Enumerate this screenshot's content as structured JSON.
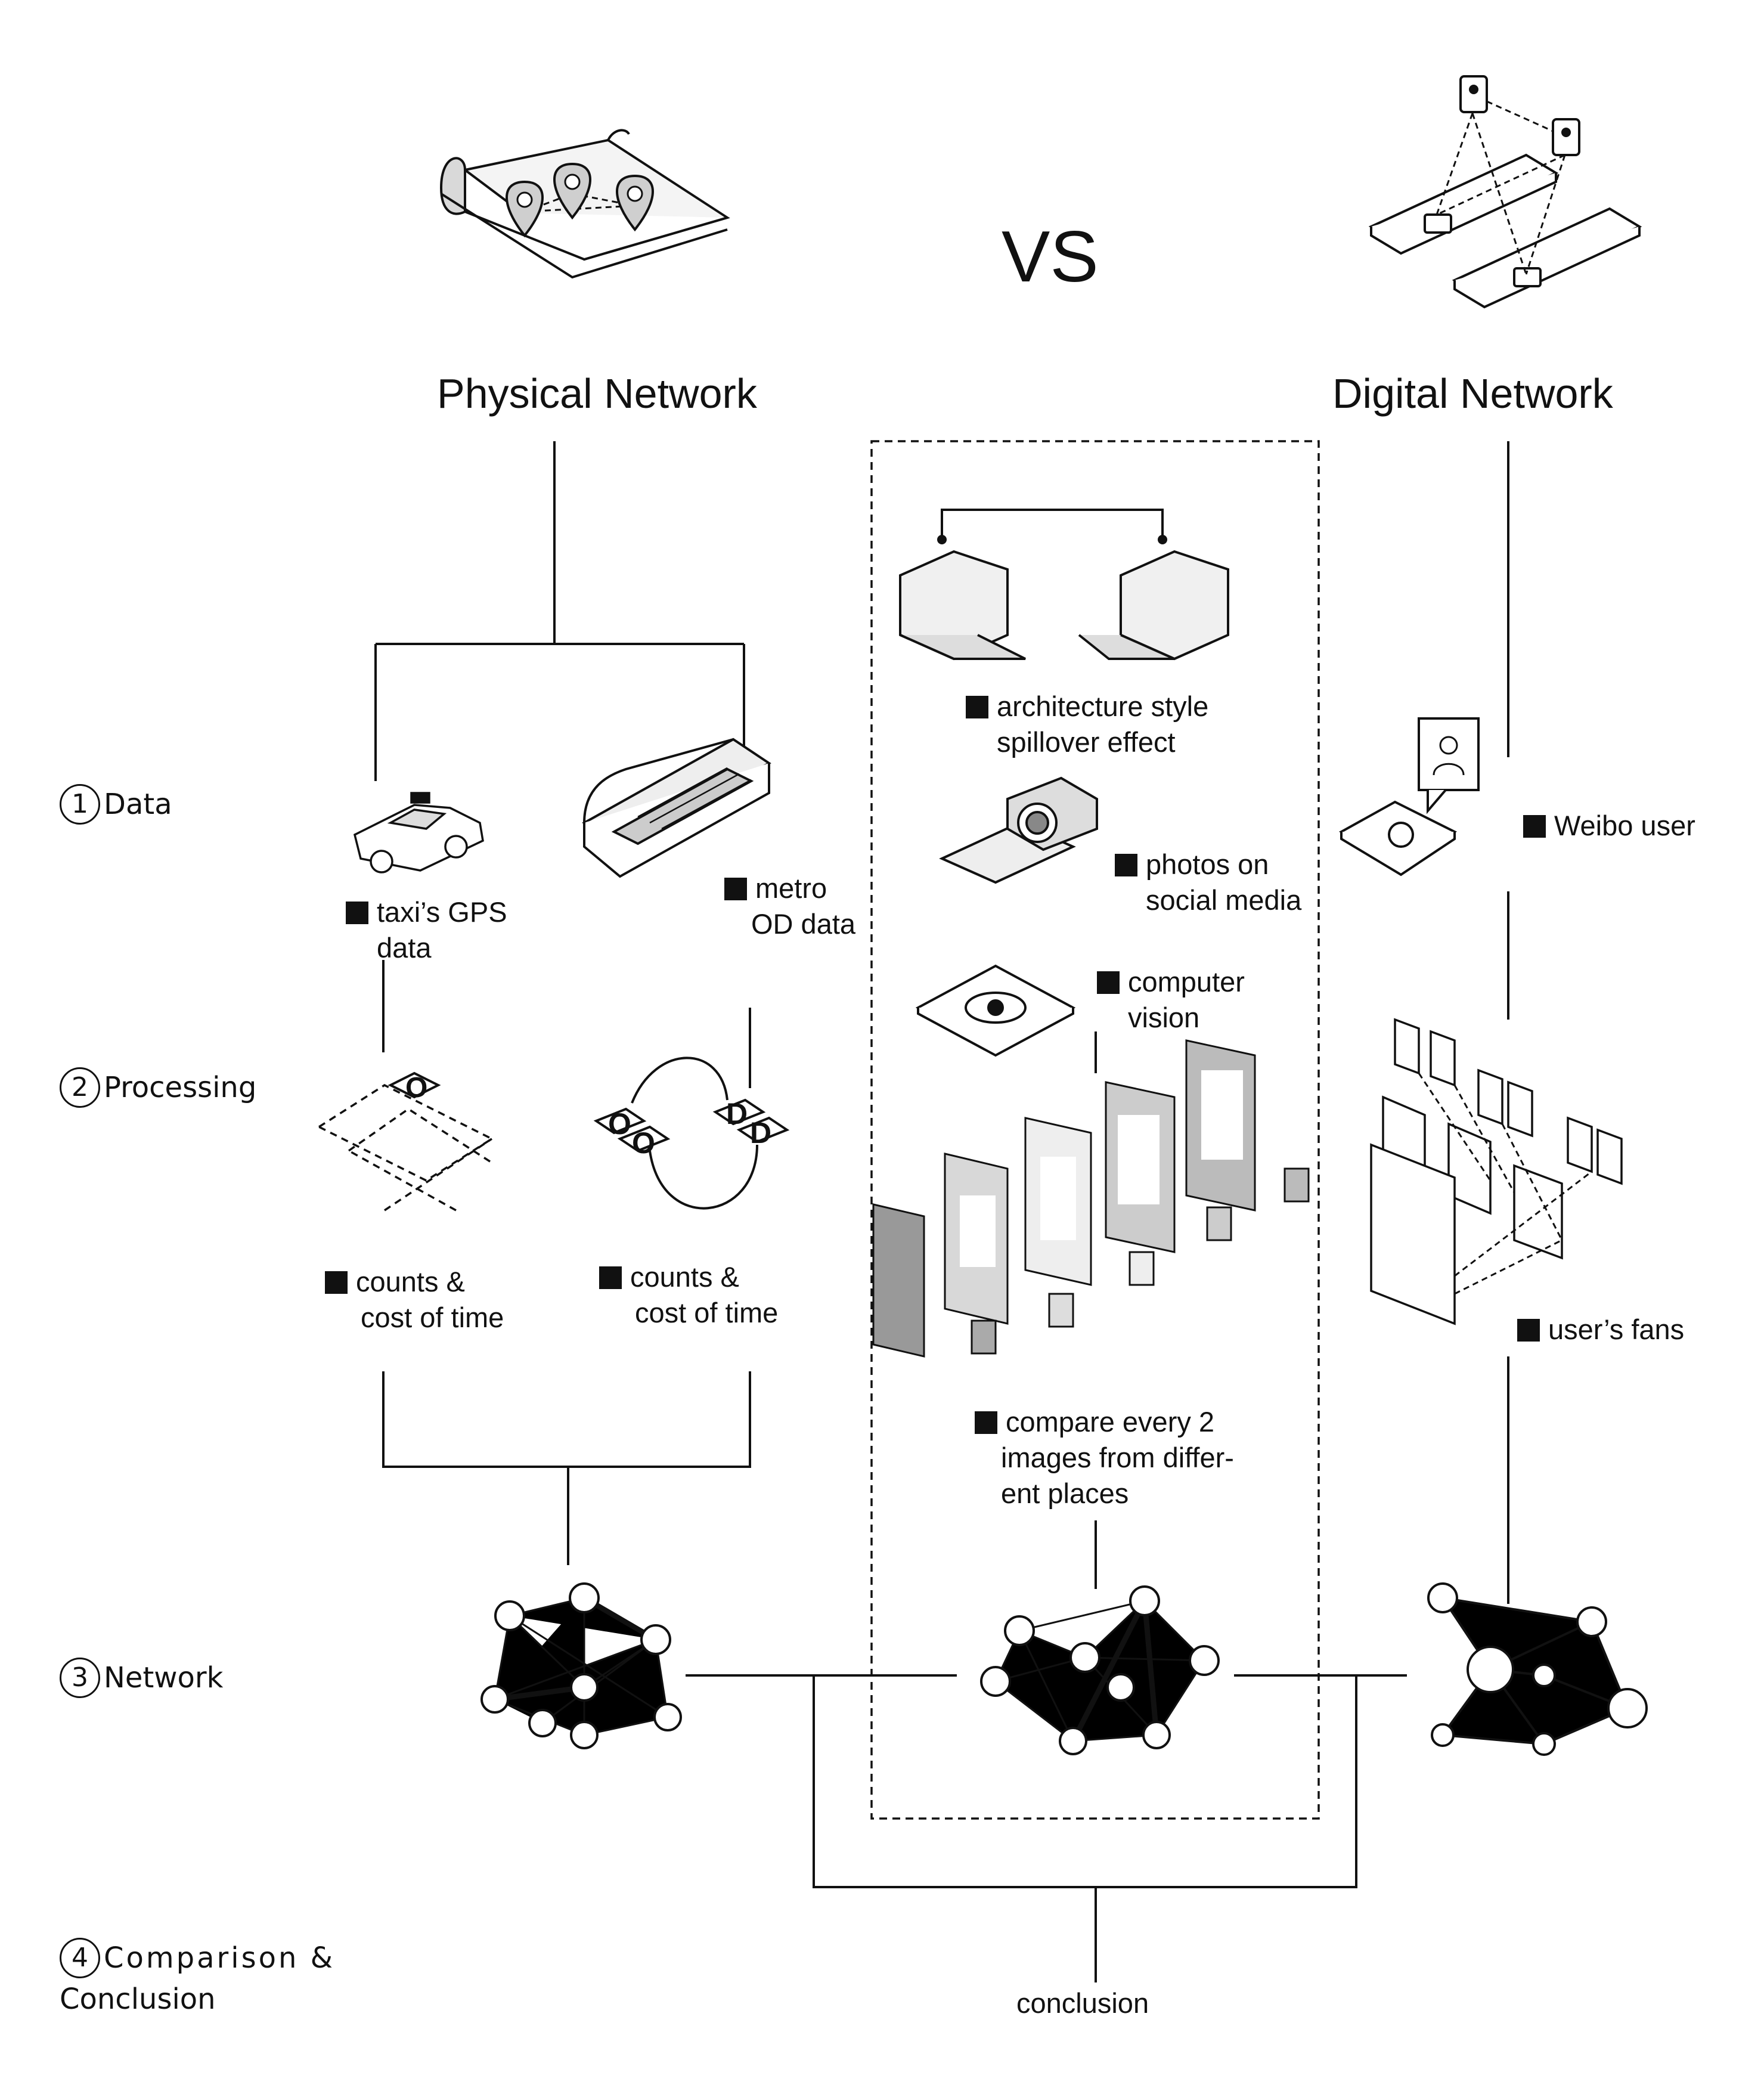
{
  "header": {
    "physical_title": "Physical Network",
    "vs": "VS",
    "digital_title": "Digital Network"
  },
  "steps": [
    {
      "num": "1",
      "label": "Data"
    },
    {
      "num": "2",
      "label": "Processing"
    },
    {
      "num": "3",
      "label": "Network"
    },
    {
      "num": "4",
      "label": "Comparison &",
      "label2": "Conclusion"
    }
  ],
  "physical": {
    "taxi_label": [
      "taxi’s GPS",
      "data"
    ],
    "metro_label": [
      "metro",
      "OD data"
    ],
    "taxi_processing": [
      "counts &",
      "cost of time"
    ],
    "metro_processing": [
      "counts &",
      "cost of time"
    ],
    "od_letters": [
      "O",
      "D"
    ]
  },
  "middle": {
    "architecture": [
      "architecture style",
      "spillover effect"
    ],
    "photos": [
      "photos on",
      "social media"
    ],
    "vision": [
      "computer",
      "vision"
    ],
    "compare": [
      "compare every 2",
      "images from differ-",
      "ent places"
    ]
  },
  "digital": {
    "weibo": "Weibo user",
    "fans": "user’s fans"
  },
  "conclusion": "conclusion",
  "icons": [
    "map-pins-icon",
    "phones-users-icon",
    "taxi-icon",
    "metro-train-icon",
    "shop-buildings-icon",
    "camera-icon",
    "vision-chip-icon",
    "weibo-icon",
    "od-pairs-icon",
    "fans-profiles-icon",
    "image-stack-icon",
    "network-graph-icon"
  ]
}
